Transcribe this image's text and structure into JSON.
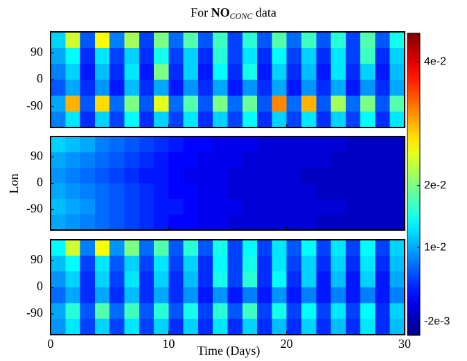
{
  "chart_data": {
    "type": "heatmap",
    "title": [
      "For ",
      "NO",
      "CONC",
      " data"
    ],
    "xlabel": "Time (Days)",
    "ylabel": "Lon",
    "xlim": [
      0,
      30
    ],
    "xticks": [
      0,
      10,
      20,
      30
    ],
    "ylim": [
      -160,
      160
    ],
    "yticks": [
      -90,
      0,
      90
    ],
    "colormap": "jet",
    "clim": [
      -0.0042,
      0.0446
    ],
    "cticks": [
      {
        "value": -0.002,
        "label": "-2e-3"
      },
      {
        "value": 0.01,
        "label": "1e-2"
      },
      {
        "value": 0.02,
        "label": "2e-2"
      },
      {
        "value": 0.04,
        "label": "4e-2"
      }
    ],
    "panels": [
      {
        "z": [
          [
            0.012,
            0.024,
            0.006,
            0.026,
            0.008,
            0.022,
            0.005,
            0.02,
            0.007,
            0.018,
            0.006,
            0.017,
            0.005,
            0.016,
            0.006,
            0.018,
            0.007,
            0.017,
            0.006,
            0.016,
            0.005,
            0.018,
            0.006,
            0.015
          ],
          [
            0.01,
            0.014,
            0.004,
            0.013,
            0.005,
            0.012,
            0.004,
            0.015,
            0.005,
            0.012,
            0.004,
            0.016,
            0.005,
            0.013,
            0.004,
            0.014,
            0.005,
            0.012,
            0.004,
            0.013,
            0.005,
            0.017,
            0.004,
            0.012
          ],
          [
            0.008,
            0.012,
            0.003,
            0.011,
            0.004,
            0.013,
            0.003,
            0.02,
            0.004,
            0.012,
            0.003,
            0.014,
            0.004,
            0.015,
            0.003,
            0.012,
            0.004,
            0.011,
            0.003,
            0.013,
            0.004,
            0.012,
            0.003,
            0.011
          ],
          [
            0.006,
            0.01,
            0.004,
            0.009,
            0.003,
            0.011,
            0.004,
            0.01,
            0.003,
            0.009,
            0.004,
            0.01,
            0.003,
            0.009,
            0.004,
            0.01,
            0.003,
            0.009,
            0.004,
            0.01,
            0.003,
            0.009,
            0.004,
            0.01
          ],
          [
            0.01,
            0.03,
            0.006,
            0.028,
            0.007,
            0.02,
            0.006,
            0.025,
            0.007,
            0.018,
            0.006,
            0.02,
            0.007,
            0.019,
            0.006,
            0.032,
            0.007,
            0.03,
            0.006,
            0.022,
            0.007,
            0.02,
            0.006,
            0.018
          ],
          [
            0.008,
            0.013,
            0.004,
            0.012,
            0.005,
            0.014,
            0.004,
            0.012,
            0.005,
            0.013,
            0.004,
            0.012,
            0.005,
            0.014,
            0.004,
            0.012,
            0.005,
            0.013,
            0.004,
            0.012,
            0.005,
            0.014,
            0.004,
            0.013
          ]
        ]
      },
      {
        "z": [
          [
            0.012,
            0.011,
            0.01,
            0.008,
            0.007,
            0.006,
            0.005,
            0.004,
            0.003,
            0.002,
            0.002,
            0.001,
            0.001,
            0.001,
            0.0,
            0.0,
            0.0,
            0.0,
            0.0,
            0.0,
            -0.001,
            -0.001,
            -0.001,
            -0.001
          ],
          [
            0.01,
            0.009,
            0.008,
            0.007,
            0.006,
            0.005,
            0.004,
            0.003,
            0.002,
            0.002,
            0.001,
            0.001,
            0.001,
            0.0,
            0.0,
            0.0,
            0.0,
            0.0,
            0.0,
            -0.001,
            -0.001,
            -0.001,
            -0.001,
            -0.001
          ],
          [
            0.009,
            0.008,
            0.007,
            0.006,
            0.005,
            0.004,
            0.003,
            0.003,
            0.002,
            0.001,
            0.001,
            0.001,
            0.0,
            0.0,
            0.0,
            0.0,
            0.0,
            -0.001,
            -0.001,
            -0.001,
            -0.001,
            -0.001,
            -0.001,
            -0.001
          ],
          [
            0.01,
            0.009,
            0.008,
            0.007,
            0.006,
            0.005,
            0.004,
            0.003,
            0.002,
            0.002,
            0.001,
            0.001,
            0.0,
            0.0,
            0.0,
            0.0,
            0.0,
            0.0,
            -0.001,
            -0.001,
            -0.001,
            -0.001,
            -0.001,
            -0.001
          ],
          [
            0.011,
            0.01,
            0.009,
            0.007,
            0.006,
            0.005,
            0.004,
            0.003,
            0.003,
            0.002,
            0.001,
            0.001,
            0.001,
            0.0,
            0.0,
            0.0,
            0.0,
            0.0,
            0.0,
            0.0,
            -0.001,
            -0.001,
            -0.001,
            -0.001
          ],
          [
            0.01,
            0.009,
            0.008,
            0.007,
            0.006,
            0.005,
            0.004,
            0.003,
            0.002,
            0.002,
            0.001,
            0.001,
            0.0,
            0.0,
            0.0,
            0.0,
            0.0,
            0.0,
            -0.001,
            -0.001,
            -0.001,
            -0.001,
            -0.001,
            -0.001
          ]
        ]
      },
      {
        "z": [
          [
            0.014,
            0.024,
            0.008,
            0.026,
            0.009,
            0.02,
            0.007,
            0.018,
            0.006,
            0.016,
            0.006,
            0.015,
            0.005,
            0.014,
            0.005,
            0.013,
            0.006,
            0.014,
            0.005,
            0.013,
            0.005,
            0.014,
            0.005,
            0.012
          ],
          [
            0.011,
            0.014,
            0.005,
            0.013,
            0.006,
            0.012,
            0.005,
            0.013,
            0.005,
            0.012,
            0.004,
            0.014,
            0.005,
            0.015,
            0.004,
            0.013,
            0.005,
            0.012,
            0.004,
            0.012,
            0.004,
            0.013,
            0.004,
            0.011
          ],
          [
            0.009,
            0.012,
            0.004,
            0.012,
            0.005,
            0.013,
            0.004,
            0.012,
            0.004,
            0.011,
            0.004,
            0.015,
            0.005,
            0.016,
            0.004,
            0.014,
            0.004,
            0.012,
            0.003,
            0.011,
            0.003,
            0.012,
            0.003,
            0.01
          ],
          [
            0.007,
            0.01,
            0.004,
            0.01,
            0.004,
            0.011,
            0.004,
            0.01,
            0.004,
            0.009,
            0.003,
            0.009,
            0.003,
            0.008,
            0.003,
            0.009,
            0.003,
            0.008,
            0.003,
            0.008,
            0.003,
            0.008,
            0.003,
            0.008
          ],
          [
            0.01,
            0.016,
            0.006,
            0.018,
            0.007,
            0.017,
            0.006,
            0.016,
            0.006,
            0.015,
            0.005,
            0.016,
            0.006,
            0.017,
            0.005,
            0.015,
            0.005,
            0.014,
            0.005,
            0.013,
            0.005,
            0.014,
            0.004,
            0.012
          ],
          [
            0.009,
            0.013,
            0.005,
            0.012,
            0.005,
            0.013,
            0.005,
            0.012,
            0.004,
            0.012,
            0.004,
            0.013,
            0.004,
            0.012,
            0.004,
            0.011,
            0.004,
            0.012,
            0.004,
            0.011,
            0.004,
            0.013,
            0.004,
            0.011
          ]
        ]
      }
    ]
  }
}
